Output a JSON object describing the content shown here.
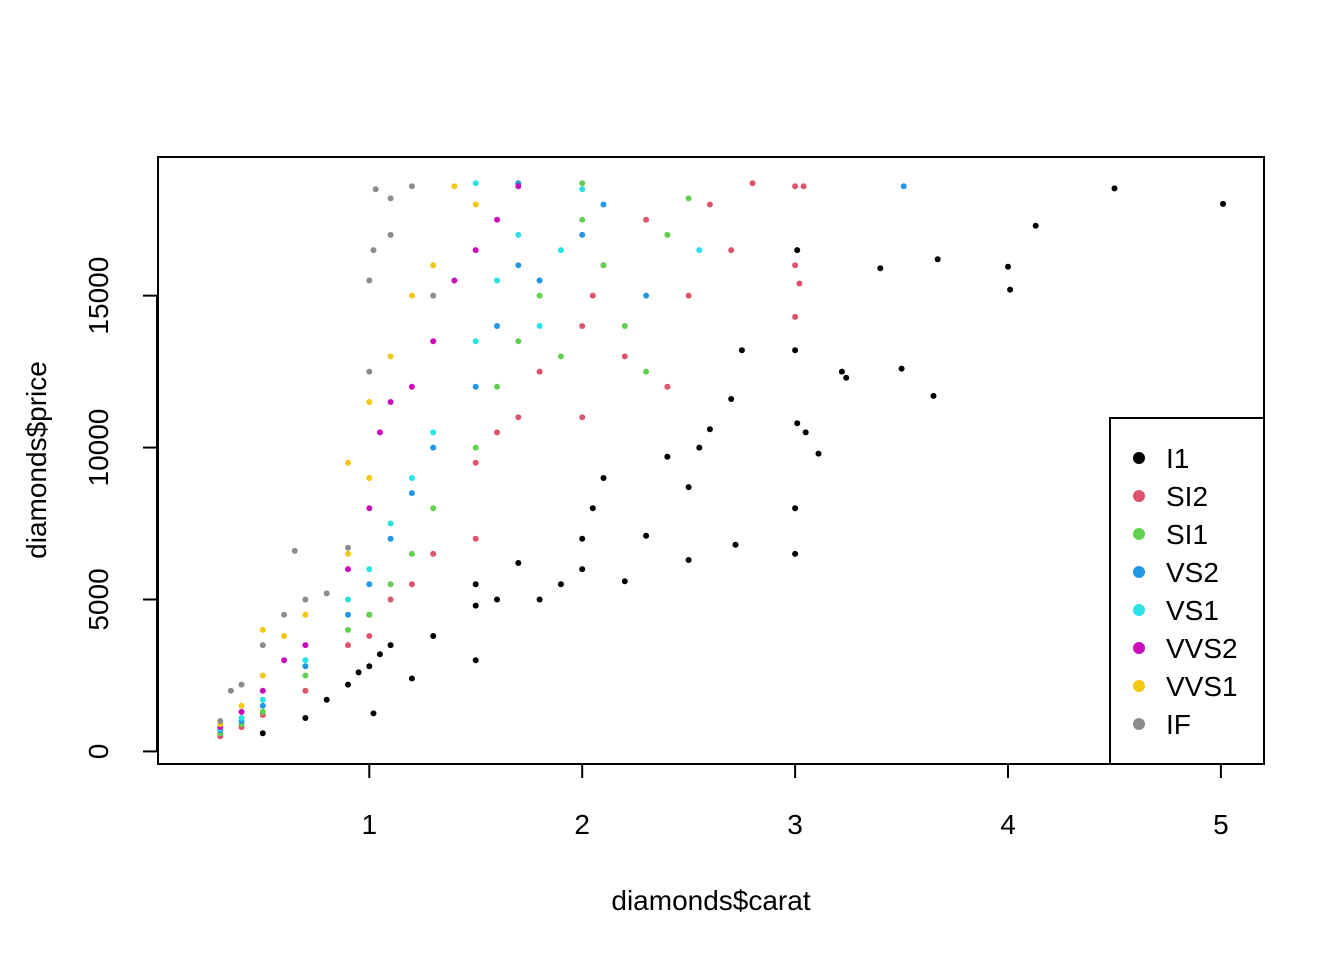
{
  "chart_data": {
    "type": "scatter",
    "xlabel": "diamonds$carat",
    "ylabel": "diamonds$price",
    "xlim": [
      0.2,
      5.01
    ],
    "ylim": [
      326,
      18823
    ],
    "x_ticks": [
      1,
      2,
      3,
      4,
      5
    ],
    "y_ticks": [
      0,
      5000,
      10000,
      15000
    ],
    "grid": false,
    "legend_position": "bottom-right",
    "series": [
      {
        "name": "I1",
        "color": "#000000",
        "points": [
          [
            0.5,
            600
          ],
          [
            0.7,
            1100
          ],
          [
            0.8,
            1700
          ],
          [
            0.9,
            2200
          ],
          [
            0.95,
            2600
          ],
          [
            1.0,
            2800
          ],
          [
            1.02,
            1250
          ],
          [
            1.05,
            3200
          ],
          [
            1.1,
            3500
          ],
          [
            1.2,
            2400
          ],
          [
            1.3,
            3800
          ],
          [
            1.5,
            3000
          ],
          [
            1.5,
            4800
          ],
          [
            1.5,
            5500
          ],
          [
            1.6,
            5000
          ],
          [
            1.7,
            6200
          ],
          [
            1.8,
            5000
          ],
          [
            1.9,
            5500
          ],
          [
            2.0,
            6000
          ],
          [
            2.0,
            7000
          ],
          [
            2.05,
            8000
          ],
          [
            2.1,
            9000
          ],
          [
            2.2,
            5600
          ],
          [
            2.3,
            7100
          ],
          [
            2.4,
            9700
          ],
          [
            2.5,
            8700
          ],
          [
            2.5,
            6300
          ],
          [
            2.55,
            10000
          ],
          [
            2.6,
            10600
          ],
          [
            2.7,
            11600
          ],
          [
            2.72,
            6800
          ],
          [
            2.75,
            13200
          ],
          [
            3.0,
            13200
          ],
          [
            3.0,
            8000
          ],
          [
            3.0,
            6500
          ],
          [
            3.01,
            10800
          ],
          [
            3.05,
            10500
          ],
          [
            3.11,
            9800
          ],
          [
            3.01,
            16500
          ],
          [
            3.22,
            12500
          ],
          [
            3.24,
            12300
          ],
          [
            3.4,
            15900
          ],
          [
            3.5,
            12600
          ],
          [
            3.65,
            11700
          ],
          [
            3.67,
            16200
          ],
          [
            4.0,
            15950
          ],
          [
            4.01,
            15200
          ],
          [
            4.13,
            17300
          ],
          [
            4.5,
            18531
          ],
          [
            5.01,
            18018
          ]
        ]
      },
      {
        "name": "SI2",
        "color": "#DF536B",
        "points": [
          [
            0.3,
            500
          ],
          [
            0.4,
            800
          ],
          [
            0.5,
            1200
          ],
          [
            0.7,
            2000
          ],
          [
            0.9,
            3500
          ],
          [
            1.0,
            3800
          ],
          [
            1.0,
            4500
          ],
          [
            1.1,
            5000
          ],
          [
            1.2,
            5500
          ],
          [
            1.3,
            6500
          ],
          [
            1.5,
            7000
          ],
          [
            1.5,
            9500
          ],
          [
            1.6,
            10500
          ],
          [
            1.7,
            11000
          ],
          [
            1.8,
            12500
          ],
          [
            2.0,
            14000
          ],
          [
            2.0,
            11000
          ],
          [
            2.05,
            15000
          ],
          [
            2.1,
            16000
          ],
          [
            2.2,
            13000
          ],
          [
            2.3,
            17500
          ],
          [
            2.4,
            12000
          ],
          [
            2.5,
            15000
          ],
          [
            2.6,
            18000
          ],
          [
            2.7,
            16500
          ],
          [
            2.8,
            18700
          ],
          [
            3.0,
            18600
          ],
          [
            3.0,
            16000
          ],
          [
            3.0,
            14300
          ],
          [
            3.04,
            18600
          ],
          [
            3.02,
            15400
          ]
        ]
      },
      {
        "name": "SI1",
        "color": "#61D04F",
        "points": [
          [
            0.3,
            600
          ],
          [
            0.4,
            900
          ],
          [
            0.5,
            1300
          ],
          [
            0.7,
            2500
          ],
          [
            0.9,
            4000
          ],
          [
            1.0,
            4500
          ],
          [
            1.1,
            5500
          ],
          [
            1.2,
            6500
          ],
          [
            1.3,
            8000
          ],
          [
            1.5,
            10000
          ],
          [
            1.6,
            12000
          ],
          [
            1.7,
            13500
          ],
          [
            1.8,
            15000
          ],
          [
            1.9,
            13000
          ],
          [
            2.0,
            17500
          ],
          [
            2.0,
            18700
          ],
          [
            2.1,
            16000
          ],
          [
            2.2,
            14000
          ],
          [
            2.3,
            12500
          ],
          [
            2.4,
            17000
          ],
          [
            2.5,
            18200
          ]
        ]
      },
      {
        "name": "VS2",
        "color": "#2297E6",
        "points": [
          [
            0.3,
            700
          ],
          [
            0.4,
            1000
          ],
          [
            0.5,
            1500
          ],
          [
            0.7,
            2800
          ],
          [
            0.9,
            4500
          ],
          [
            1.0,
            5500
          ],
          [
            1.1,
            7000
          ],
          [
            1.2,
            8500
          ],
          [
            1.3,
            10000
          ],
          [
            1.5,
            12000
          ],
          [
            1.6,
            14000
          ],
          [
            1.7,
            16000
          ],
          [
            1.7,
            18700
          ],
          [
            1.8,
            15500
          ],
          [
            2.0,
            17000
          ],
          [
            2.1,
            18000
          ],
          [
            2.3,
            15000
          ],
          [
            3.51,
            18600
          ]
        ]
      },
      {
        "name": "VS1",
        "color": "#28E2E5",
        "points": [
          [
            0.3,
            750
          ],
          [
            0.4,
            1100
          ],
          [
            0.5,
            1700
          ],
          [
            0.7,
            3000
          ],
          [
            0.9,
            5000
          ],
          [
            1.0,
            6000
          ],
          [
            1.1,
            7500
          ],
          [
            1.2,
            9000
          ],
          [
            1.3,
            10500
          ],
          [
            1.5,
            13500
          ],
          [
            1.5,
            18700
          ],
          [
            1.6,
            15500
          ],
          [
            1.7,
            17000
          ],
          [
            1.8,
            14000
          ],
          [
            1.9,
            16500
          ],
          [
            2.0,
            18500
          ],
          [
            2.55,
            16500
          ]
        ]
      },
      {
        "name": "VVS2",
        "color": "#CD0BBC",
        "points": [
          [
            0.3,
            800
          ],
          [
            0.4,
            1300
          ],
          [
            0.5,
            2000
          ],
          [
            0.6,
            3000
          ],
          [
            0.7,
            3500
          ],
          [
            0.9,
            6000
          ],
          [
            1.0,
            8000
          ],
          [
            1.05,
            10500
          ],
          [
            1.1,
            11500
          ],
          [
            1.2,
            12000
          ],
          [
            1.3,
            13500
          ],
          [
            1.4,
            15500
          ],
          [
            1.5,
            16500
          ],
          [
            1.6,
            17500
          ],
          [
            1.7,
            18600
          ]
        ]
      },
      {
        "name": "VVS1",
        "color": "#F5C710",
        "points": [
          [
            0.3,
            900
          ],
          [
            0.4,
            1500
          ],
          [
            0.5,
            2500
          ],
          [
            0.6,
            3800
          ],
          [
            0.7,
            4500
          ],
          [
            0.9,
            6500
          ],
          [
            0.9,
            9500
          ],
          [
            1.0,
            9000
          ],
          [
            1.0,
            11500
          ],
          [
            1.1,
            13000
          ],
          [
            1.2,
            15000
          ],
          [
            1.3,
            16000
          ],
          [
            1.4,
            18600
          ],
          [
            1.5,
            18000
          ],
          [
            0.5,
            4000
          ]
        ]
      },
      {
        "name": "IF",
        "color": "#8C8C8C",
        "points": [
          [
            0.3,
            1000
          ],
          [
            0.35,
            2000
          ],
          [
            0.4,
            2200
          ],
          [
            0.5,
            3500
          ],
          [
            0.6,
            4500
          ],
          [
            0.65,
            6600
          ],
          [
            0.7,
            5000
          ],
          [
            0.8,
            5200
          ],
          [
            0.9,
            6700
          ],
          [
            1.0,
            12500
          ],
          [
            1.0,
            15500
          ],
          [
            1.02,
            16500
          ],
          [
            1.03,
            18500
          ],
          [
            1.1,
            18200
          ],
          [
            1.2,
            18600
          ],
          [
            1.3,
            15000
          ],
          [
            1.1,
            17000
          ]
        ]
      }
    ]
  }
}
